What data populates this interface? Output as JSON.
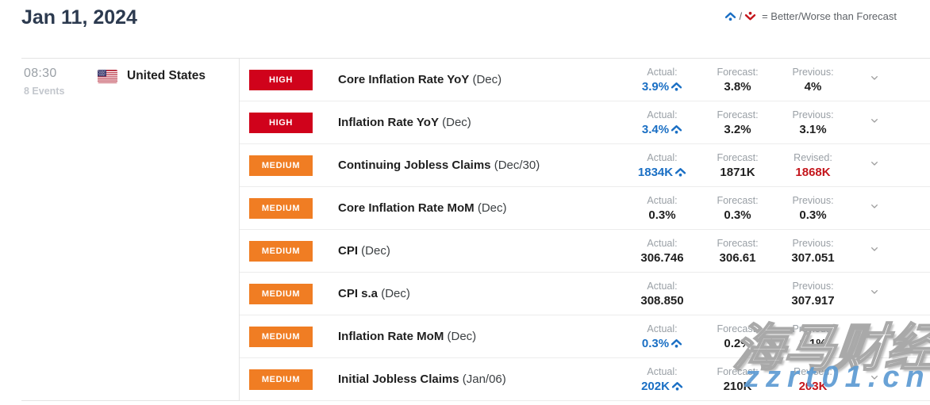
{
  "header": {
    "title": "Jan 11, 2024",
    "legend_separator": "/",
    "legend_text": "= Better/Worse than Forecast"
  },
  "session": {
    "time": "08:30",
    "events_count": "8 Events",
    "country": "United States"
  },
  "colors": {
    "impact_high": "#d0021b",
    "impact_medium": "#f07d23",
    "actual_better": "#1a6fc4",
    "revised_red": "#c4161c",
    "value_default": "#1f1f1f",
    "legend_up": "#1a6fc4",
    "legend_down": "#c4161c",
    "chevron_gray": "#9e9e9e"
  },
  "events": [
    {
      "impact": "HIGH",
      "name": "Core Inflation Rate YoY",
      "period": "(Dec)",
      "actual": {
        "label": "Actual:",
        "value": "3.9%",
        "arrow": "up",
        "highlight": "blue"
      },
      "forecast": {
        "label": "Forecast:",
        "value": "3.8%"
      },
      "third": {
        "label": "Previous:",
        "value": "4%",
        "highlight": ""
      }
    },
    {
      "impact": "HIGH",
      "name": "Inflation Rate YoY",
      "period": "(Dec)",
      "actual": {
        "label": "Actual:",
        "value": "3.4%",
        "arrow": "up",
        "highlight": "blue"
      },
      "forecast": {
        "label": "Forecast:",
        "value": "3.2%"
      },
      "third": {
        "label": "Previous:",
        "value": "3.1%",
        "highlight": ""
      }
    },
    {
      "impact": "MEDIUM",
      "name": "Continuing Jobless Claims",
      "period": "(Dec/30)",
      "actual": {
        "label": "Actual:",
        "value": "1834K",
        "arrow": "up",
        "highlight": "blue"
      },
      "forecast": {
        "label": "Forecast:",
        "value": "1871K"
      },
      "third": {
        "label": "Revised:",
        "value": "1868K",
        "highlight": "red"
      }
    },
    {
      "impact": "MEDIUM",
      "name": "Core Inflation Rate MoM",
      "period": "(Dec)",
      "actual": {
        "label": "Actual:",
        "value": "0.3%",
        "arrow": "",
        "highlight": ""
      },
      "forecast": {
        "label": "Forecast:",
        "value": "0.3%"
      },
      "third": {
        "label": "Previous:",
        "value": "0.3%",
        "highlight": ""
      }
    },
    {
      "impact": "MEDIUM",
      "name": "CPI",
      "period": "(Dec)",
      "actual": {
        "label": "Actual:",
        "value": "306.746",
        "arrow": "",
        "highlight": ""
      },
      "forecast": {
        "label": "Forecast:",
        "value": "306.61"
      },
      "third": {
        "label": "Previous:",
        "value": "307.051",
        "highlight": ""
      }
    },
    {
      "impact": "MEDIUM",
      "name": "CPI s.a",
      "period": "(Dec)",
      "actual": {
        "label": "Actual:",
        "value": "308.850",
        "arrow": "",
        "highlight": ""
      },
      "forecast": {
        "label": "",
        "value": ""
      },
      "third": {
        "label": "Previous:",
        "value": "307.917",
        "highlight": ""
      }
    },
    {
      "impact": "MEDIUM",
      "name": "Inflation Rate MoM",
      "period": "(Dec)",
      "actual": {
        "label": "Actual:",
        "value": "0.3%",
        "arrow": "up",
        "highlight": "blue"
      },
      "forecast": {
        "label": "Forecast:",
        "value": "0.2%"
      },
      "third": {
        "label": "Previous:",
        "value": "0.1%",
        "highlight": ""
      }
    },
    {
      "impact": "MEDIUM",
      "name": "Initial Jobless Claims",
      "period": "(Jan/06)",
      "actual": {
        "label": "Actual:",
        "value": "202K",
        "arrow": "up",
        "highlight": "blue"
      },
      "forecast": {
        "label": "Forecast:",
        "value": "210K"
      },
      "third": {
        "label": "Revised:",
        "value": "203K",
        "highlight": "red"
      }
    }
  ],
  "watermark": {
    "line1": "海马财经",
    "line2": "zzrt01.cn"
  }
}
